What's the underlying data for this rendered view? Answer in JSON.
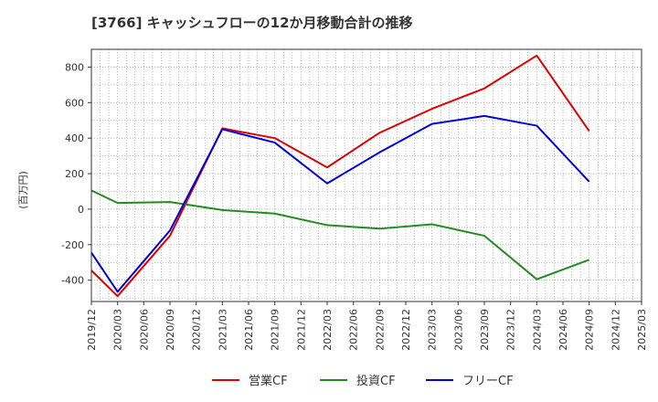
{
  "chart_data": {
    "type": "line",
    "title": "[3766]  キャッシュフローの12か月移動合計の推移",
    "xlabel": "",
    "ylabel": "(百万円)",
    "ylim": [
      -520,
      900
    ],
    "yticks": [
      -400,
      -200,
      0,
      200,
      400,
      600,
      800
    ],
    "ytick_labels": [
      "-400",
      "-200",
      "0",
      "200",
      "400",
      "600",
      "800"
    ],
    "x_ticks": [
      "2019/12",
      "2020/03",
      "2020/06",
      "2020/09",
      "2020/12",
      "2021/03",
      "2021/06",
      "2021/09",
      "2021/12",
      "2022/03",
      "2022/06",
      "2022/09",
      "2022/12",
      "2023/03",
      "2023/06",
      "2023/09",
      "2023/12",
      "2024/03",
      "2024/06",
      "2024/09",
      "2024/12",
      "2025/03"
    ],
    "grid": true,
    "legend": "bottom",
    "series": [
      {
        "name": "営業CF",
        "color": "#dd0000",
        "x": [
          0,
          1,
          3,
          5,
          7,
          9,
          11,
          13,
          15,
          17,
          19
        ],
        "values": [
          -345,
          -490,
          -150,
          455,
          400,
          235,
          430,
          565,
          680,
          865,
          440
        ]
      },
      {
        "name": "投資CF",
        "color": "#228b22",
        "x": [
          0,
          1,
          3,
          5,
          7,
          9,
          11,
          13,
          15,
          17,
          19
        ],
        "values": [
          105,
          35,
          40,
          -5,
          -25,
          -90,
          -110,
          -85,
          -150,
          -395,
          -285
        ]
      },
      {
        "name": "フリーCF",
        "color": "#0000dd",
        "x": [
          0,
          1,
          3,
          5,
          7,
          9,
          11,
          13,
          15,
          17,
          19
        ],
        "values": [
          -245,
          -465,
          -120,
          450,
          375,
          145,
          320,
          480,
          525,
          470,
          155
        ]
      }
    ]
  }
}
